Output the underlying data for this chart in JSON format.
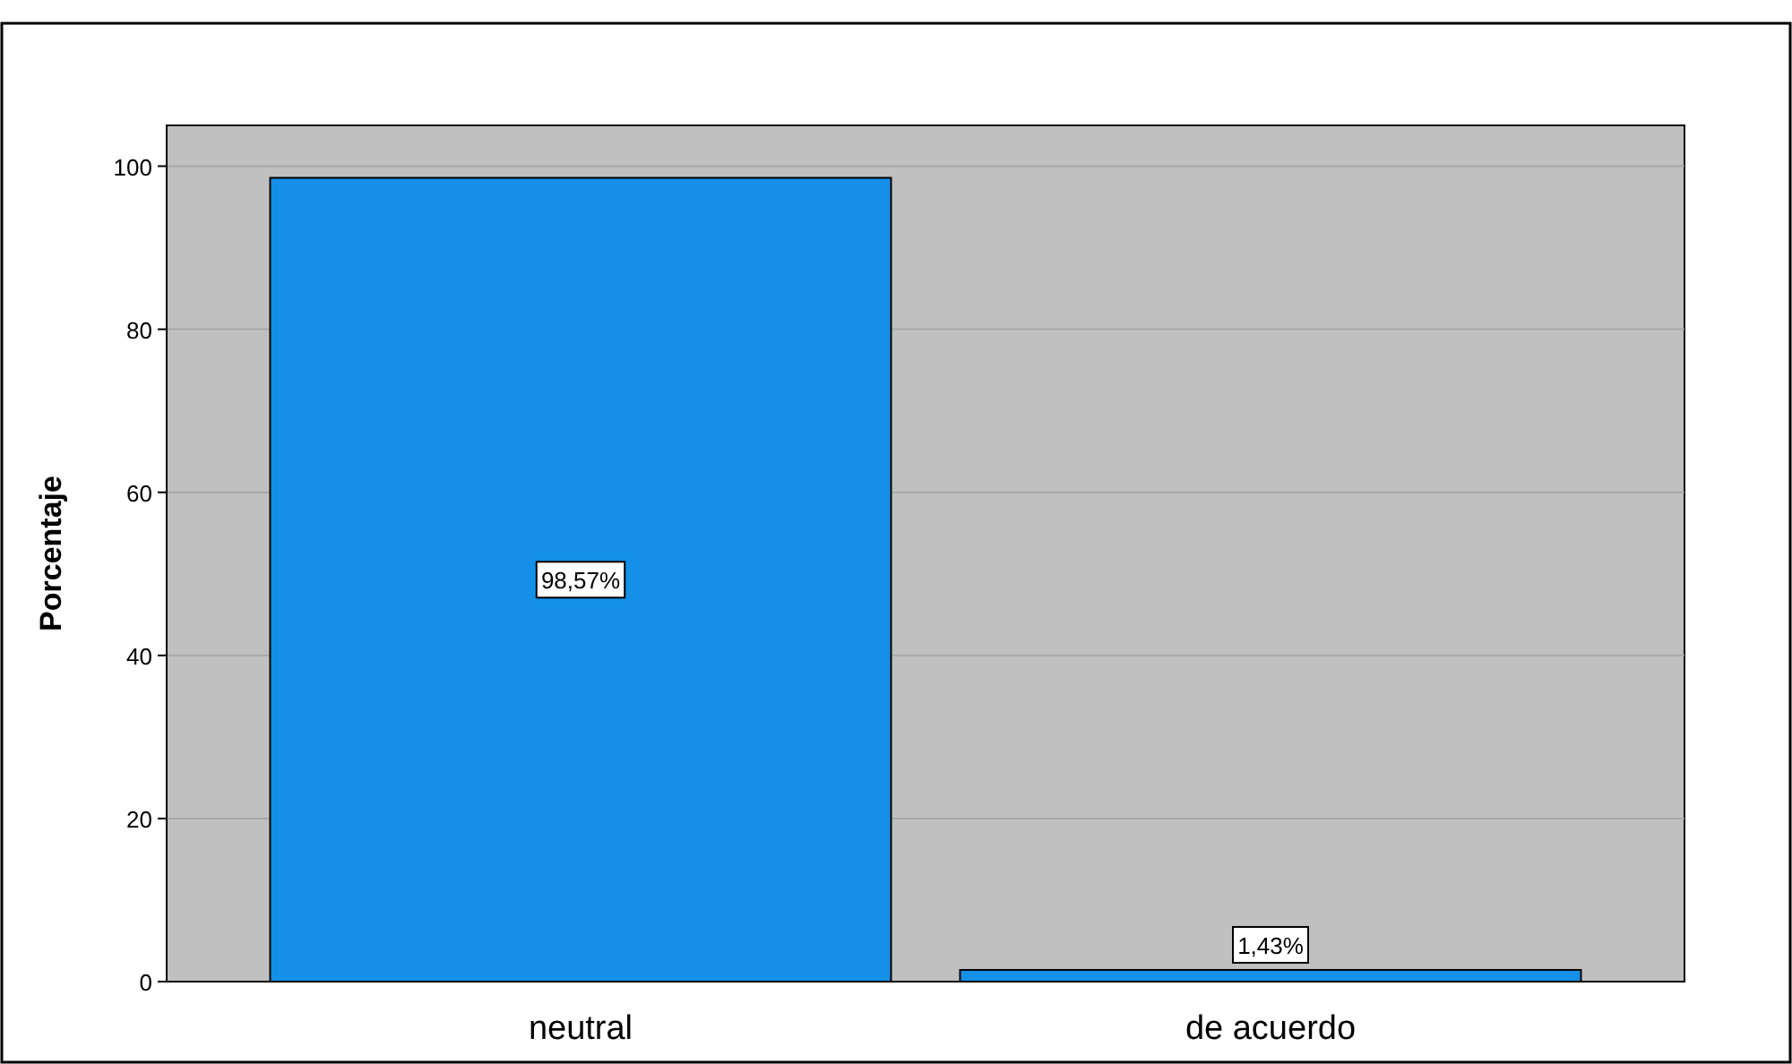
{
  "chart_data": {
    "type": "bar",
    "ylabel": "Porcentaje",
    "categories": [
      "neutral",
      "de acuerdo"
    ],
    "values": [
      98.57,
      1.43
    ],
    "value_labels": [
      "98,57%",
      "1,43%"
    ],
    "color": "#1490e8",
    "ylim": [
      0,
      105
    ],
    "yticks": [
      0,
      20,
      40,
      60,
      80,
      100
    ],
    "grid": "y"
  }
}
